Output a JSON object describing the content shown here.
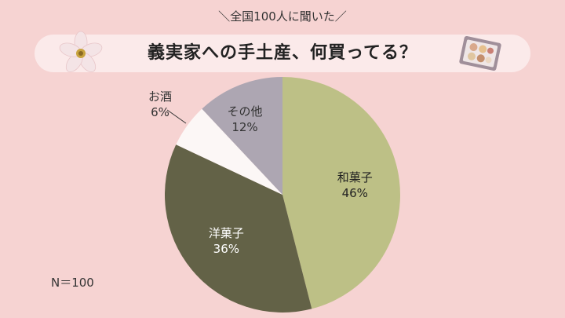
{
  "header": {
    "subtitle": "＼全国100人に聞いた／",
    "title": "義実家への手土産、何買ってる？"
  },
  "note": "N＝100",
  "chart_data": {
    "type": "pie",
    "title": "義実家への手土産、何買ってる？",
    "categories": [
      "和菓子",
      "洋菓子",
      "お酒",
      "その他"
    ],
    "values": [
      46,
      36,
      6,
      12
    ],
    "labels": [
      "46%",
      "36%",
      "6%",
      "12%"
    ],
    "colors": [
      "#bdc086",
      "#636247",
      "#fcf7f6",
      "#ada6b2"
    ],
    "start": "12 o'clock, clockwise"
  },
  "icons": [
    "flower-icon",
    "gift-box-icon"
  ]
}
